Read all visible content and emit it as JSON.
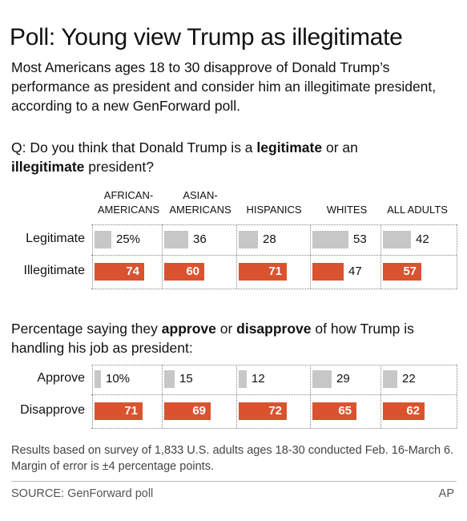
{
  "title": "Poll: Young view Trump as illegitimate",
  "subtitle": "Most Americans ages 18 to 30 disapprove of Donald Trump’s performance as president and consider him an illegitimate president, according to a new GenForward poll.",
  "q1": {
    "prefix": "Q: Do you think that Donald Trump is a ",
    "bold1": "legitimate",
    "mid": " or an ",
    "bold2": "illegitimate",
    "suffix": " president?"
  },
  "q2": {
    "prefix": "Percentage saying they ",
    "bold1": "approve",
    "mid": " or ",
    "bold2": "disapprove",
    "suffix": " of how Trump is handling his job as president:"
  },
  "columns": [
    {
      "line1": "AFRICAN-",
      "line2": "AMERICANS"
    },
    {
      "line1": "ASIAN-",
      "line2": "AMERICANS"
    },
    {
      "line1": "",
      "line2": "HISPANICS"
    },
    {
      "line1": "",
      "line2": "WHITES"
    },
    {
      "line1": "",
      "line2": "ALL ADULTS"
    }
  ],
  "colors": {
    "gray": "#c7c7c7",
    "orange": "#d9532f"
  },
  "chart_data": [
    {
      "type": "bar",
      "title": "Q: Do you think that Donald Trump is a legitimate or an illegitimate president?",
      "categories": [
        "AFRICAN-AMERICANS",
        "ASIAN-AMERICANS",
        "HISPANICS",
        "WHITES",
        "ALL ADULTS"
      ],
      "series": [
        {
          "name": "Legitimate",
          "color": "gray",
          "values": [
            25,
            36,
            28,
            53,
            42
          ],
          "labels": [
            "25%",
            "36",
            "28",
            "53",
            "42"
          ]
        },
        {
          "name": "Illegitimate",
          "color": "orange",
          "values": [
            74,
            60,
            71,
            47,
            57
          ],
          "labels": [
            "74",
            "60",
            "71",
            "47",
            "57"
          ]
        }
      ],
      "ylim": [
        0,
        100
      ]
    },
    {
      "type": "bar",
      "title": "Percentage saying they approve or disapprove of how Trump is handling his job as president:",
      "categories": [
        "AFRICAN-AMERICANS",
        "ASIAN-AMERICANS",
        "HISPANICS",
        "WHITES",
        "ALL ADULTS"
      ],
      "series": [
        {
          "name": "Approve",
          "color": "gray",
          "values": [
            10,
            15,
            12,
            29,
            22
          ],
          "labels": [
            "10%",
            "15",
            "12",
            "29",
            "22"
          ]
        },
        {
          "name": "Disapprove",
          "color": "orange",
          "values": [
            71,
            69,
            72,
            65,
            62
          ],
          "labels": [
            "71",
            "69",
            "72",
            "65",
            "62"
          ]
        }
      ],
      "ylim": [
        0,
        100
      ]
    }
  ],
  "note": "Results based on survey of 1,833 U.S. adults ages 18-30 conducted Feb. 16-March 6. Margin of error is ±4 percentage points.",
  "source": "SOURCE: GenForward poll",
  "credit": "AP"
}
